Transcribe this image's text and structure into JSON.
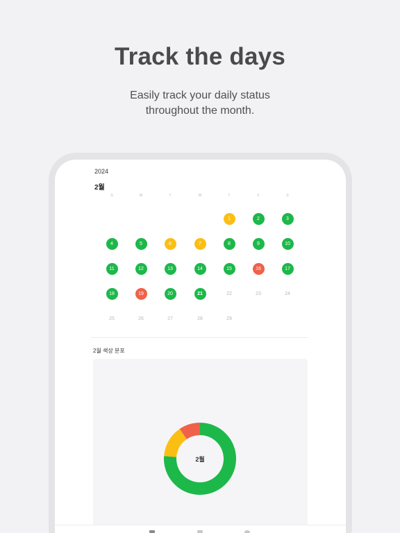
{
  "headline": "Track the days",
  "subline_1": "Easily track your daily status",
  "subline_2": "throughout the month.",
  "calendar": {
    "year": "2024",
    "month": "2월",
    "weekdays": [
      "S",
      "M",
      "T",
      "W",
      "T",
      "F",
      "S"
    ],
    "days": [
      {
        "label": "1",
        "status": "yellow"
      },
      {
        "label": "2",
        "status": "green"
      },
      {
        "label": "3",
        "status": "green"
      },
      {
        "label": "4",
        "status": "green"
      },
      {
        "label": "5",
        "status": "green"
      },
      {
        "label": "6",
        "status": "yellow"
      },
      {
        "label": "7",
        "status": "yellow"
      },
      {
        "label": "8",
        "status": "green"
      },
      {
        "label": "9",
        "status": "green"
      },
      {
        "label": "10",
        "status": "green"
      },
      {
        "label": "11",
        "status": "green"
      },
      {
        "label": "12",
        "status": "green"
      },
      {
        "label": "13",
        "status": "green"
      },
      {
        "label": "14",
        "status": "green"
      },
      {
        "label": "15",
        "status": "green"
      },
      {
        "label": "16",
        "status": "red"
      },
      {
        "label": "17",
        "status": "green"
      },
      {
        "label": "18",
        "status": "green"
      },
      {
        "label": "19",
        "status": "red"
      },
      {
        "label": "20",
        "status": "green"
      },
      {
        "label": "21",
        "status": "today"
      },
      {
        "label": "22",
        "status": "none"
      },
      {
        "label": "23",
        "status": "none"
      },
      {
        "label": "24",
        "status": "none"
      },
      {
        "label": "25",
        "status": "none"
      },
      {
        "label": "26",
        "status": "none"
      },
      {
        "label": "27",
        "status": "none"
      },
      {
        "label": "28",
        "status": "none"
      },
      {
        "label": "29",
        "status": "none"
      }
    ]
  },
  "distribution": {
    "title": "2월 색상 분포",
    "center_label": "2월"
  },
  "chart_data": {
    "type": "pie",
    "categories": [
      "green",
      "yellow",
      "red"
    ],
    "values": [
      16,
      3,
      2
    ]
  },
  "colors": {
    "green": "#1db84a",
    "yellow": "#fbbf14",
    "red": "#f0614a",
    "today": "#1db84a"
  },
  "tabbar": {
    "icons": [
      "calendar-icon",
      "grid-icon",
      "settings-icon"
    ]
  }
}
